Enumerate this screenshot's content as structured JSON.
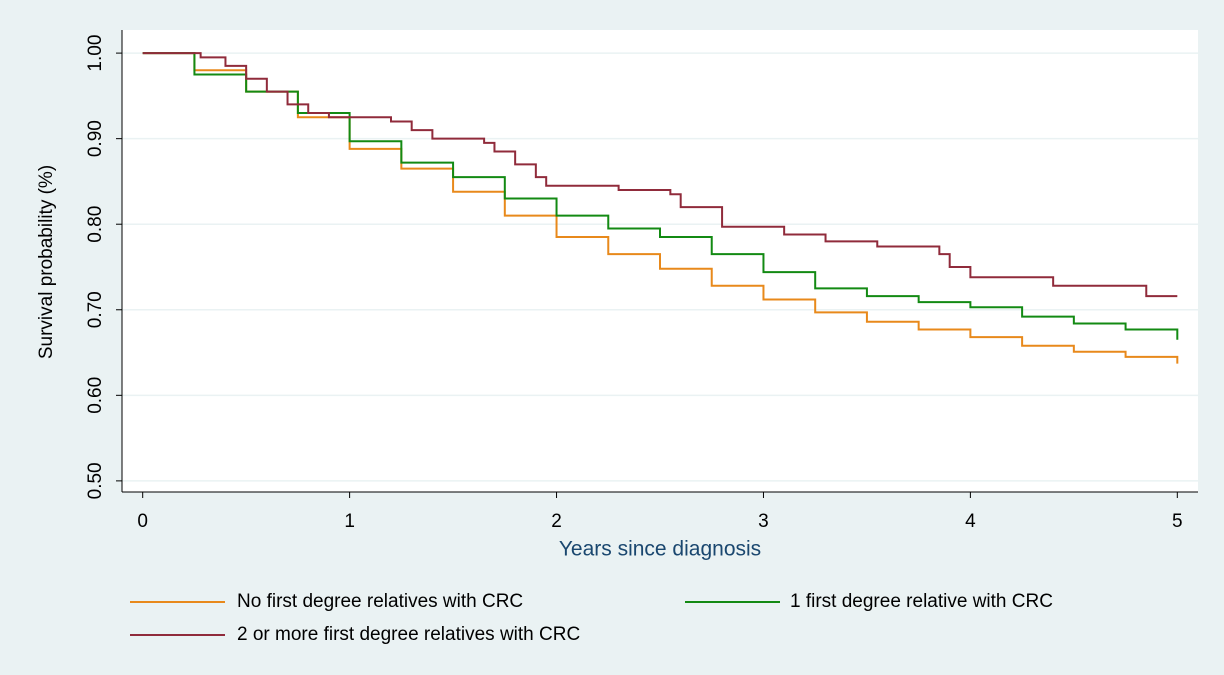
{
  "chart_data": {
    "type": "step",
    "x_label": "Years since diagnosis",
    "y_label": "Survival probability (%)",
    "xlim": [
      -0.1,
      5.1
    ],
    "xticks": [
      0,
      1,
      2,
      3,
      4,
      5
    ],
    "ylim": [
      0.487,
      1.027
    ],
    "yticks": [
      {
        "value": 0.5,
        "label": "0.50"
      },
      {
        "value": 0.6,
        "label": "0.60"
      },
      {
        "value": 0.7,
        "label": "0.70"
      },
      {
        "value": 0.8,
        "label": "0.80"
      },
      {
        "value": 0.9,
        "label": "0.90"
      },
      {
        "value": 1,
        "label": "1.00"
      }
    ],
    "grid": true,
    "series": [
      {
        "name": "No first degree relatives with CRC",
        "color": "#e8891b",
        "x": [
          0,
          0.25,
          0.5,
          0.75,
          1,
          1.25,
          1.5,
          1.75,
          2,
          2.25,
          2.5,
          2.75,
          3,
          3.25,
          3.5,
          3.75,
          4,
          4.25,
          4.5,
          4.75,
          5
        ],
        "values": [
          1,
          0.98,
          0.955,
          0.925,
          0.888,
          0.865,
          0.838,
          0.81,
          0.785,
          0.765,
          0.748,
          0.728,
          0.712,
          0.697,
          0.686,
          0.677,
          0.668,
          0.658,
          0.651,
          0.645,
          0.637
        ]
      },
      {
        "name": "1 first degree relative with CRC",
        "color": "#138a13",
        "x": [
          0,
          0.25,
          0.5,
          0.75,
          1,
          1.25,
          1.5,
          1.75,
          2,
          2.25,
          2.5,
          2.75,
          3,
          3.25,
          3.5,
          3.75,
          4,
          4.25,
          4.5,
          4.75,
          5
        ],
        "values": [
          1,
          0.975,
          0.955,
          0.93,
          0.897,
          0.872,
          0.855,
          0.83,
          0.81,
          0.795,
          0.785,
          0.765,
          0.744,
          0.725,
          0.716,
          0.709,
          0.703,
          0.692,
          0.684,
          0.677,
          0.665
        ]
      },
      {
        "name": "2 or more first degree relatives with CRC",
        "color": "#902b3b",
        "x": [
          0,
          0.28,
          0.4,
          0.5,
          0.6,
          0.7,
          0.8,
          0.9,
          1.2,
          1.3,
          1.4,
          1.65,
          1.7,
          1.8,
          1.9,
          1.95,
          2.3,
          2.55,
          2.6,
          2.8,
          3.1,
          3.3,
          3.55,
          3.85,
          3.9,
          4,
          4.4,
          4.85,
          5
        ],
        "values": [
          1,
          0.995,
          0.985,
          0.97,
          0.955,
          0.94,
          0.93,
          0.925,
          0.92,
          0.91,
          0.9,
          0.895,
          0.885,
          0.87,
          0.855,
          0.845,
          0.84,
          0.835,
          0.82,
          0.797,
          0.788,
          0.78,
          0.774,
          0.765,
          0.75,
          0.738,
          0.728,
          0.716,
          0.716
        ]
      }
    ]
  }
}
